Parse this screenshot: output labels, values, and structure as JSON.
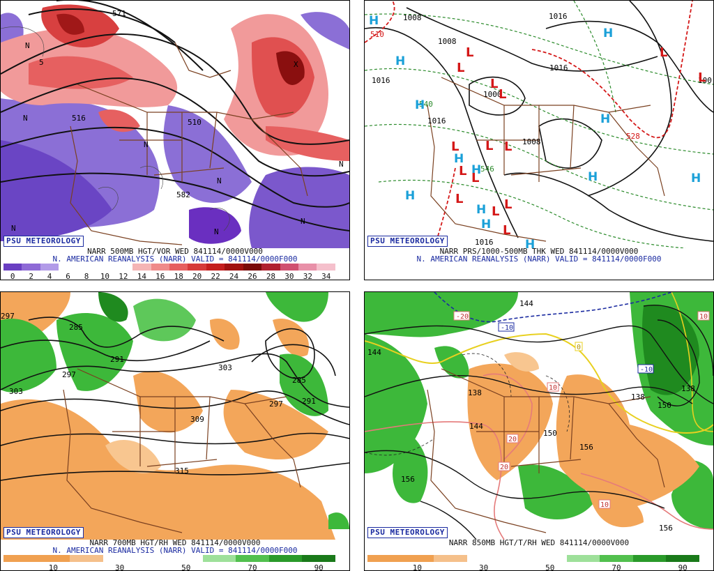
{
  "branding": "PSU METEOROLOGY",
  "panels": [
    {
      "id": "p1",
      "caption1": "NARR 500MB HGT/VOR WED 841114/0000V000",
      "caption2": "N. AMERICAN REANALYSIS (NARR) VALID = 841114/0000F000",
      "colorbar_colors": [
        "#6a3fc2",
        "#8e6ad6",
        "#b29be8",
        "#ffffff",
        "#ffffff",
        "#ffffff",
        "#ffffff",
        "#f5b5b5",
        "#ef8a8a",
        "#e65f5f",
        "#d63a3a",
        "#c41e1e",
        "#a01010",
        "#7a0a0a",
        "#b02030",
        "#d05070",
        "#e890a8",
        "#f5c0cc"
      ],
      "colorbar_ticks": [
        "0",
        "2",
        "4",
        "6",
        "8",
        "10",
        "12",
        "14",
        "16",
        "18",
        "20",
        "22",
        "24",
        "26",
        "28",
        "30",
        "32",
        "34"
      ],
      "contour_labels": [
        "571",
        "510",
        "582",
        "516",
        "5"
      ],
      "symbols": [
        "N",
        "N",
        "N",
        "N",
        "N",
        "N",
        "N",
        "N",
        "X"
      ]
    },
    {
      "id": "p2",
      "caption1": "NARR PRS/1000-500MB THK WED 841114/0000V000",
      "caption2": "N. AMERICAN REANALYSIS (NARR) VALID = 841114/0000F000",
      "contour_labels": [
        "1016",
        "1008",
        "1016",
        "1008",
        "1000",
        "1016",
        "1008",
        "1016",
        "510",
        "528",
        "540",
        "546",
        "100",
        "1016"
      ],
      "highs": [
        "H",
        "H",
        "H",
        "H",
        "H",
        "H",
        "H",
        "H",
        "H",
        "H",
        "H",
        "H",
        "H"
      ],
      "lows": [
        "L",
        "L",
        "L",
        "L",
        "L",
        "L",
        "L",
        "L",
        "L",
        "L",
        "L",
        "L",
        "L",
        "L",
        "L"
      ]
    },
    {
      "id": "p3",
      "caption1": "NARR 700MB HGT/RH WED 841114/0000V000",
      "caption2": "N. AMERICAN REANALYSIS (NARR) VALID = 841114/0000F000",
      "colorbar_colors": [
        "#f0a050",
        "#f0a050",
        "#f5c08a",
        "#ffffff",
        "#ffffff",
        "#ffffff",
        "#9ee09a",
        "#52c04e",
        "#2a9a2a",
        "#1a7a1a"
      ],
      "colorbar_ticks": [
        "10",
        "30",
        "50",
        "70",
        "90"
      ],
      "contour_labels": [
        "297",
        "285",
        "291",
        "297",
        "303",
        "309",
        "315",
        "303",
        "291",
        "285",
        "297"
      ]
    },
    {
      "id": "p4",
      "caption1": "NARR 850MB HGT/T/RH WED 841114/0000V000",
      "colorbar_colors": [
        "#f0a050",
        "#f0a050",
        "#f5c08a",
        "#ffffff",
        "#ffffff",
        "#ffffff",
        "#9ee09a",
        "#52c04e",
        "#2a9a2a",
        "#1a7a1a"
      ],
      "colorbar_ticks": [
        "10",
        "30",
        "50",
        "70",
        "90"
      ],
      "contour_labels": [
        "144",
        "144",
        "138",
        "138",
        "144",
        "150",
        "156",
        "156",
        "138",
        "150",
        "156"
      ],
      "temp_labels": [
        "-20",
        "-10",
        "0",
        "10",
        "20",
        "20",
        "10",
        "-10",
        "10"
      ]
    }
  ]
}
